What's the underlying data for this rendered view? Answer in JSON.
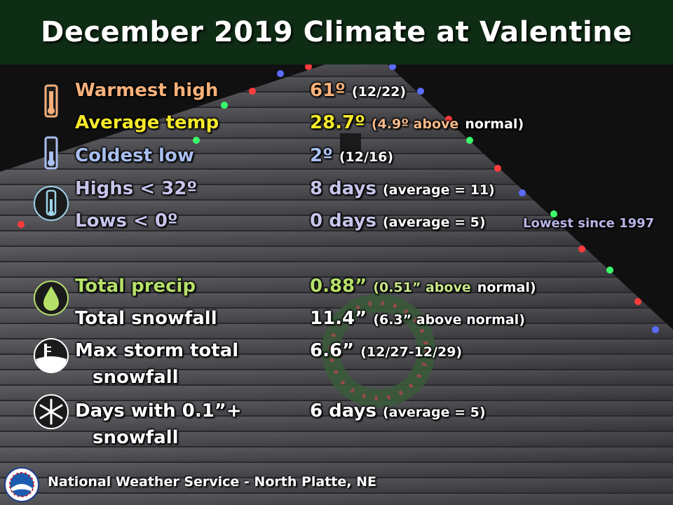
{
  "title": "December 2019 Climate at Valentine",
  "colors": {
    "warm": "#f7b07a",
    "average": "#f5e92a",
    "cold": "#a9bff0",
    "lows": "#c6c4ea",
    "precip": "#b5e06a",
    "white": "#ffffff",
    "note": "#b7b5e6",
    "title_bar": "#0e2d14"
  },
  "rows": [
    {
      "icon": "thermometer-warm-icon",
      "label": "Warmest high",
      "value": "61º",
      "detail": "(12/22)"
    },
    {
      "label": "Average temp",
      "value": "28.7º",
      "detail_colored": "(4.9º above",
      "detail_plain": "normal)"
    },
    {
      "icon": "thermometer-cold-icon",
      "label": "Coldest low",
      "value": "2º",
      "detail": "(12/16)"
    },
    {
      "icon": "thermometer-ice-icon",
      "label": "Highs < 32º",
      "value": "8 days",
      "detail": "(average = 11)"
    },
    {
      "label": "Lows < 0º",
      "value": "0 days",
      "detail": "(average = 5)",
      "note": "Lowest since 1997"
    },
    {
      "icon": "raindrop-icon",
      "label": "Total precip",
      "value": "0.88”",
      "detail_colored": "(0.51” above",
      "detail_plain": "normal)"
    },
    {
      "label": "Total snowfall",
      "value": "11.4”",
      "detail": "(6.3” above normal)"
    },
    {
      "icon": "snow-depth-icon",
      "label": "Max storm total",
      "label2": "snowfall",
      "value": "6.6”",
      "detail": "(12/27-12/29)"
    },
    {
      "icon": "snowflake-icon",
      "label": "Days with 0.1”+",
      "label2": "snowfall",
      "value": "6 days",
      "detail": "(average = 5)"
    }
  ],
  "footer": {
    "logo": "noaa-nws-logo-icon",
    "text": "National Weather Service  -  North Platte, NE"
  }
}
